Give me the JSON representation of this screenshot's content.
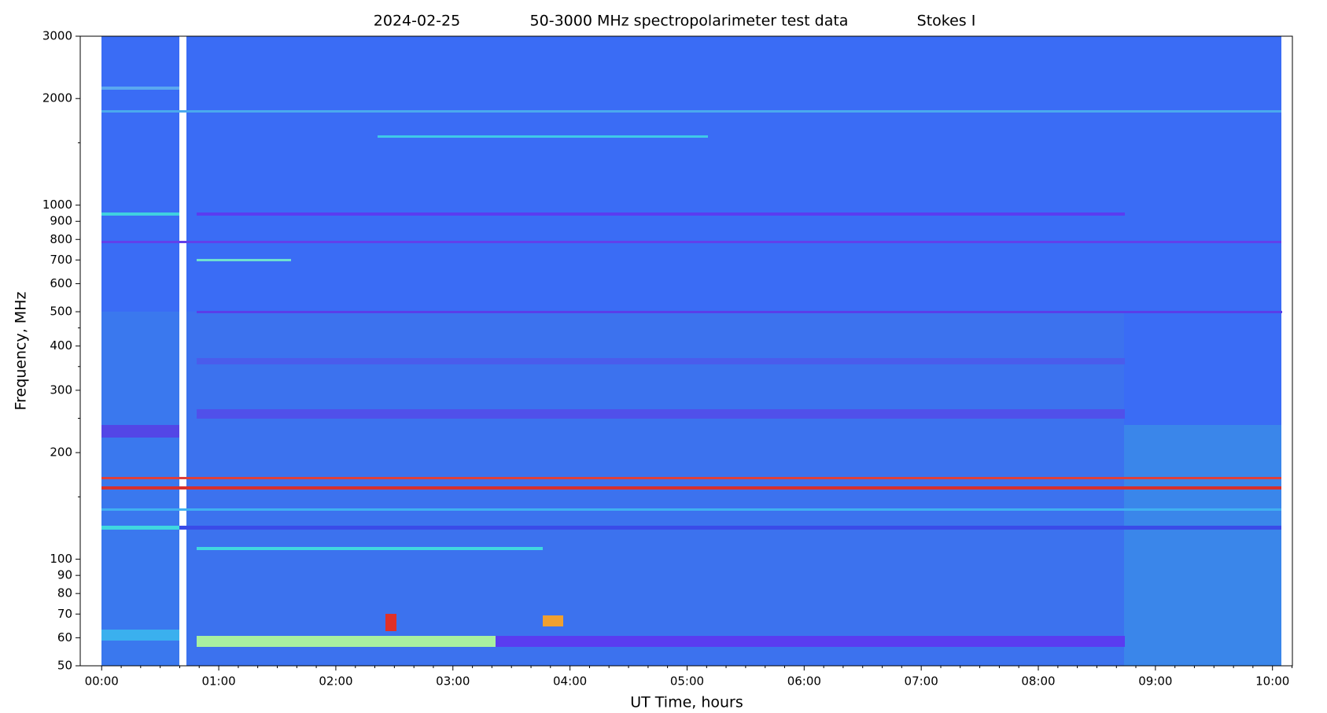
{
  "chart_data": {
    "type": "spectrogram",
    "date": "2024-02-25",
    "title": "50-3000 MHz spectropolarimeter test data",
    "subtitle": "Stokes I",
    "xlabel": "UT Time, hours",
    "ylabel": "Frequency, MHz",
    "xlim": [
      -0.183,
      10.17
    ],
    "xticks": [
      {
        "value": 0,
        "label": "00:00"
      },
      {
        "value": 1,
        "label": "01:00"
      },
      {
        "value": 2,
        "label": "02:00"
      },
      {
        "value": 3,
        "label": "03:00"
      },
      {
        "value": 4,
        "label": "04:00"
      },
      {
        "value": 5,
        "label": "05:00"
      },
      {
        "value": 6,
        "label": "06:00"
      },
      {
        "value": 7,
        "label": "07:00"
      },
      {
        "value": 8,
        "label": "08:00"
      },
      {
        "value": 9,
        "label": "09:00"
      },
      {
        "value": 10,
        "label": "10:00"
      }
    ],
    "xminorticks": [
      0.167,
      0.333,
      0.5,
      0.667,
      0.833,
      1.167,
      1.333,
      1.5,
      1.667,
      1.833,
      2.167,
      2.333,
      2.5,
      2.667,
      2.833,
      3.167,
      3.333,
      3.5,
      3.667,
      3.833,
      4.167,
      4.333,
      4.5,
      4.667,
      4.833,
      5.167,
      5.333,
      5.5,
      5.667,
      5.833,
      6.167,
      6.333,
      6.5,
      6.667,
      6.833,
      7.167,
      7.333,
      7.5,
      7.667,
      7.833,
      8.167,
      8.333,
      8.5,
      8.667,
      8.833,
      9.167,
      9.333,
      9.5,
      9.667,
      9.833,
      10.167
    ],
    "ylim": [
      50,
      3000
    ],
    "yscale": "log",
    "yticks": [
      50,
      60,
      70,
      80,
      90,
      100,
      200,
      300,
      400,
      500,
      600,
      700,
      800,
      900,
      1000,
      2000,
      3000
    ],
    "yminorticks": [
      150,
      250,
      350,
      450,
      1500
    ],
    "colormap": "rainbow"
  }
}
